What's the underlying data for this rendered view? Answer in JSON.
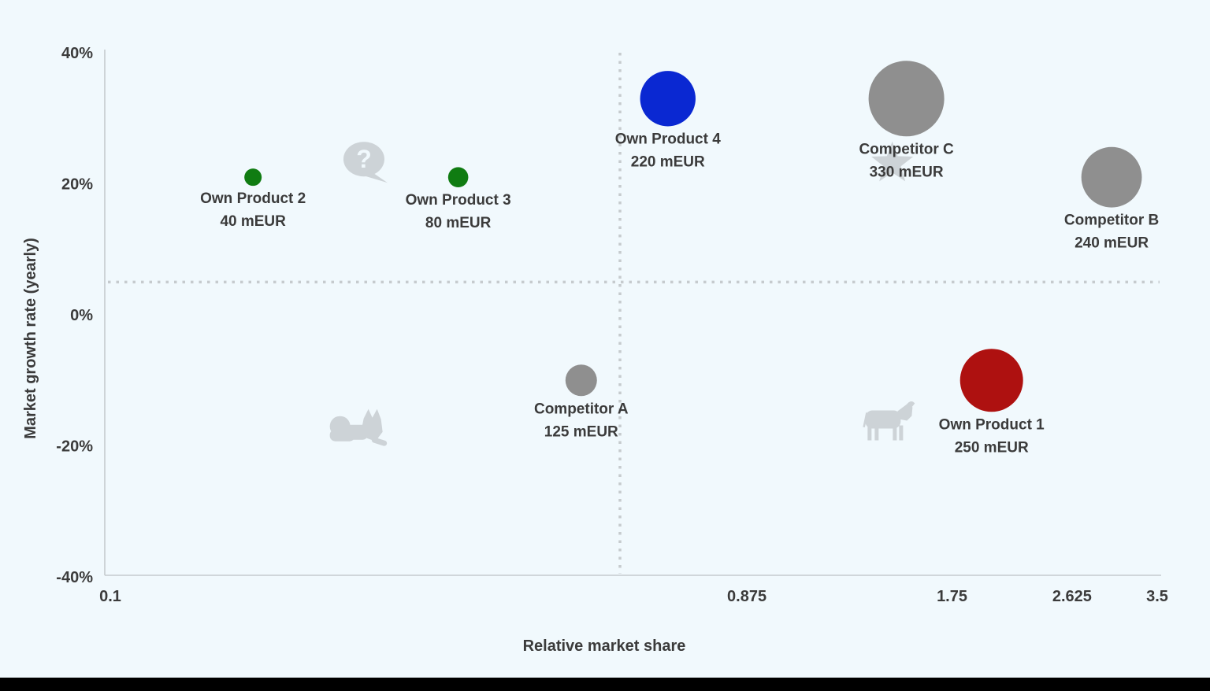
{
  "page": {
    "background": "#f1f9fd",
    "bottom_bar_color": "#000000",
    "text_color": "#3b3b3b",
    "axis_line_color": "#c6cbce",
    "divider_color": "#c6cbce",
    "icon_color": "#cdd3d7"
  },
  "chart_data": {
    "type": "scatter",
    "variant": "bcg-growth-share-matrix-bubble",
    "title": "",
    "xlabel": "Relative market share",
    "ylabel": "Market growth rate (yearly)",
    "x_scale": "log",
    "xlim": [
      0.1,
      3.5
    ],
    "ylim": [
      -40,
      40
    ],
    "grid": false,
    "x_ticks": [
      0.1,
      0.875,
      1.75,
      2.625,
      3.5
    ],
    "x_tick_labels": [
      "0.1",
      "0.875",
      "1.75",
      "2.625",
      "3.5"
    ],
    "y_ticks": [
      40,
      20,
      0,
      -20,
      -40
    ],
    "y_tick_labels": [
      "40%",
      "20%",
      "0%",
      "-20%",
      "-40%"
    ],
    "dividers": {
      "vertical_x": 0.57,
      "horizontal_y": 5
    },
    "bubble_size_rule": "radius_px = clamp(mEUR * 0.16, 11, 48)",
    "points": [
      {
        "label": "Own Product 2",
        "value_label": "40 mEUR",
        "x": 0.165,
        "y": 21,
        "size_meur": 40,
        "color": "#107c12",
        "category": "own"
      },
      {
        "label": "Own Product 3",
        "value_label": "80 mEUR",
        "x": 0.33,
        "y": 21,
        "size_meur": 80,
        "color": "#107c12",
        "category": "own"
      },
      {
        "label": "Own Product 4",
        "value_label": "220 mEUR",
        "x": 0.67,
        "y": 33,
        "size_meur": 220,
        "color": "#0a28d2",
        "category": "own"
      },
      {
        "label": "Competitor C",
        "value_label": "330 mEUR",
        "x": 1.5,
        "y": 33,
        "size_meur": 330,
        "color": "#8f8f8f",
        "category": "competitor"
      },
      {
        "label": "Competitor B",
        "value_label": "240 mEUR",
        "x": 3.0,
        "y": 21,
        "size_meur": 240,
        "color": "#8f8f8f",
        "category": "competitor"
      },
      {
        "label": "Competitor A",
        "value_label": "125 mEUR",
        "x": 0.5,
        "y": -10,
        "size_meur": 125,
        "color": "#8f8f8f",
        "category": "competitor"
      },
      {
        "label": "Own Product 1",
        "value_label": "250 mEUR",
        "x": 2.0,
        "y": -10,
        "size_meur": 250,
        "color": "#ae1110",
        "category": "own"
      }
    ],
    "quadrant_icons": [
      {
        "name": "question-mark-icon",
        "quadrant": "question-marks",
        "x": 0.24,
        "y": 23.4
      },
      {
        "name": "star-icon",
        "quadrant": "stars",
        "x": 1.43,
        "y": 23.1
      },
      {
        "name": "dog-icon",
        "quadrant": "dogs",
        "x": 0.236,
        "y": -17.5
      },
      {
        "name": "cow-icon",
        "quadrant": "cash-cows",
        "x": 1.41,
        "y": -16.4
      }
    ]
  }
}
